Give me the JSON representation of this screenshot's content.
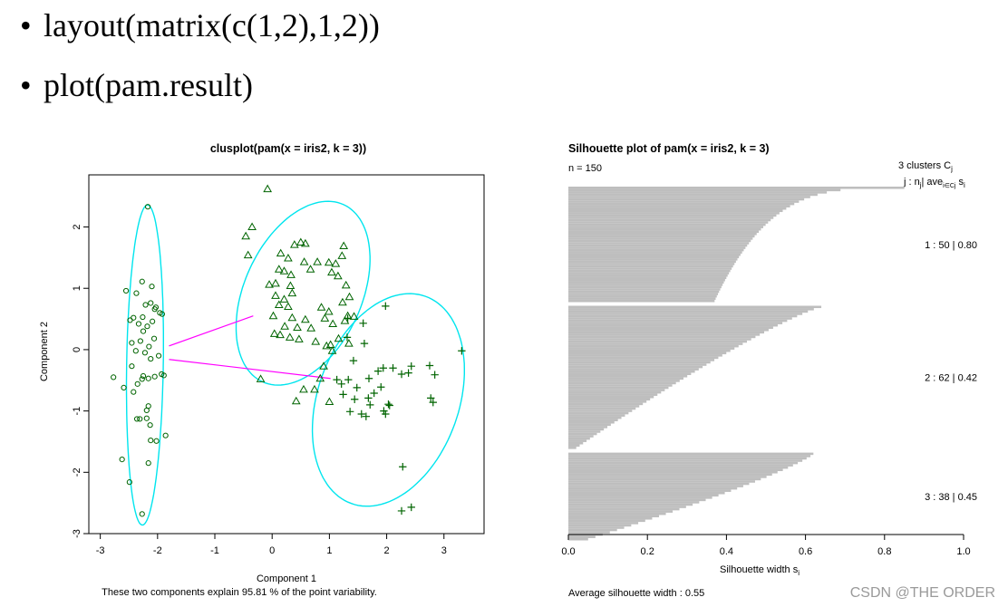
{
  "slide": {
    "bullets": [
      {
        "glyph": "•",
        "text": "layout(matrix(c(1,2),1,2))"
      },
      {
        "glyph": "•",
        "text": "plot(pam.result)"
      }
    ],
    "watermark": "CSDN @THE ORDER"
  },
  "chart_data": [
    {
      "type": "scatter",
      "title": "clusplot(pam(x = iris2, k = 3))",
      "xlabel": "Component 1",
      "ylabel": "Component 2",
      "subtitle": "These two components explain 95.81 % of the point variability.",
      "xlim": [
        -3.2,
        3.7
      ],
      "ylim": [
        -3.0,
        2.85
      ],
      "xticks": [
        -3,
        -2,
        -1,
        0,
        1,
        2,
        3
      ],
      "yticks": [
        -3,
        -2,
        -1,
        0,
        1,
        2
      ],
      "colors": {
        "points": "#006400",
        "ellipse": "#00e5ee",
        "lines": "#ff00ff"
      },
      "series": [
        {
          "marker": "circle",
          "points": [
            [
              -2.17,
              2.33
            ],
            [
              -2.55,
              0.96
            ],
            [
              -2.37,
              0.92
            ],
            [
              -2.1,
              1.03
            ],
            [
              -2.27,
              1.11
            ],
            [
              -2.12,
              0.76
            ],
            [
              -2.03,
              0.69
            ],
            [
              -2.05,
              0.66
            ],
            [
              -1.92,
              0.58
            ],
            [
              -2.42,
              0.52
            ],
            [
              -2.26,
              0.53
            ],
            [
              -2.09,
              0.46
            ],
            [
              -2.33,
              0.42
            ],
            [
              -2.48,
              0.48
            ],
            [
              -1.96,
              0.6
            ],
            [
              -2.21,
              0.73
            ],
            [
              -2.25,
              0.3
            ],
            [
              -2.18,
              0.38
            ],
            [
              -2.06,
              0.18
            ],
            [
              -2.3,
              0.14
            ],
            [
              -2.45,
              0.11
            ],
            [
              -2.15,
              0.05
            ],
            [
              -2.38,
              -0.02
            ],
            [
              -2.22,
              -0.05
            ],
            [
              -1.98,
              -0.1
            ],
            [
              -2.12,
              -0.15
            ],
            [
              -2.45,
              -0.27
            ],
            [
              -2.25,
              -0.43
            ],
            [
              -2.16,
              -0.47
            ],
            [
              -2.05,
              -0.44
            ],
            [
              -1.93,
              -0.4
            ],
            [
              -1.89,
              -0.42
            ],
            [
              -2.27,
              -0.48
            ],
            [
              -2.35,
              -0.56
            ],
            [
              -2.59,
              -0.62
            ],
            [
              -2.77,
              -0.45
            ],
            [
              -2.42,
              -0.69
            ],
            [
              -2.16,
              -0.92
            ],
            [
              -2.19,
              -0.99
            ],
            [
              -2.36,
              -1.13
            ],
            [
              -2.31,
              -1.13
            ],
            [
              -2.19,
              -1.12
            ],
            [
              -2.13,
              -1.23
            ],
            [
              -1.86,
              -1.4
            ],
            [
              -2.12,
              -1.48
            ],
            [
              -2.02,
              -1.49
            ],
            [
              -2.62,
              -1.79
            ],
            [
              -2.16,
              -1.85
            ],
            [
              -2.49,
              -2.16
            ],
            [
              -2.27,
              -2.68
            ]
          ]
        },
        {
          "marker": "triangle",
          "points": [
            [
              -0.08,
              2.62
            ],
            [
              -0.35,
              2.0
            ],
            [
              -0.46,
              1.85
            ],
            [
              -0.42,
              1.54
            ],
            [
              0.5,
              1.75
            ],
            [
              0.58,
              1.73
            ],
            [
              0.39,
              1.71
            ],
            [
              0.15,
              1.57
            ],
            [
              1.25,
              1.69
            ],
            [
              1.22,
              1.53
            ],
            [
              0.28,
              1.49
            ],
            [
              0.56,
              1.43
            ],
            [
              0.79,
              1.43
            ],
            [
              0.99,
              1.42
            ],
            [
              1.11,
              1.4
            ],
            [
              0.12,
              1.31
            ],
            [
              0.21,
              1.28
            ],
            [
              0.33,
              1.22
            ],
            [
              0.67,
              1.31
            ],
            [
              1.04,
              1.26
            ],
            [
              1.15,
              1.2
            ],
            [
              1.29,
              1.05
            ],
            [
              0.06,
              1.08
            ],
            [
              -0.05,
              1.06
            ],
            [
              0.32,
              1.04
            ],
            [
              0.35,
              0.92
            ],
            [
              0.06,
              0.88
            ],
            [
              0.21,
              0.82
            ],
            [
              1.35,
              0.86
            ],
            [
              1.23,
              0.77
            ],
            [
              0.12,
              0.73
            ],
            [
              0.28,
              0.7
            ],
            [
              0.86,
              0.69
            ],
            [
              0.99,
              0.62
            ],
            [
              1.32,
              0.55
            ],
            [
              0.02,
              0.55
            ],
            [
              0.35,
              0.52
            ],
            [
              0.58,
              0.49
            ],
            [
              0.92,
              0.51
            ],
            [
              1.27,
              0.47
            ],
            [
              1.43,
              0.54
            ],
            [
              0.22,
              0.38
            ],
            [
              0.44,
              0.36
            ],
            [
              0.68,
              0.35
            ],
            [
              0.04,
              0.26
            ],
            [
              0.14,
              0.24
            ],
            [
              0.31,
              0.2
            ],
            [
              0.47,
              0.17
            ],
            [
              0.76,
              0.13
            ],
            [
              1.02,
              0.08
            ],
            [
              1.16,
              0.18
            ],
            [
              1.34,
              0.1
            ],
            [
              0.95,
              0.06
            ],
            [
              1.05,
              -0.02
            ],
            [
              0.9,
              -0.27
            ],
            [
              0.84,
              -0.47
            ],
            [
              0.55,
              -0.65
            ],
            [
              0.74,
              -0.65
            ],
            [
              1.0,
              -0.85
            ],
            [
              0.42,
              -0.84
            ],
            [
              1.06,
              0.42
            ],
            [
              -0.2,
              -0.48
            ]
          ]
        },
        {
          "marker": "plus",
          "points": [
            [
              1.98,
              0.71
            ],
            [
              1.32,
              0.51
            ],
            [
              1.59,
              0.43
            ],
            [
              1.31,
              0.2
            ],
            [
              1.61,
              0.1
            ],
            [
              1.42,
              -0.18
            ],
            [
              1.33,
              -0.49
            ],
            [
              1.69,
              -0.47
            ],
            [
              1.94,
              -0.3
            ],
            [
              1.85,
              -0.35
            ],
            [
              1.9,
              -0.61
            ],
            [
              1.78,
              -0.71
            ],
            [
              1.71,
              -0.9
            ],
            [
              1.68,
              -0.79
            ],
            [
              1.44,
              -0.81
            ],
            [
              1.24,
              -0.73
            ],
            [
              1.21,
              -0.56
            ],
            [
              1.13,
              -0.49
            ],
            [
              1.36,
              -1.01
            ],
            [
              1.56,
              -1.05
            ],
            [
              1.64,
              -1.09
            ],
            [
              1.95,
              -1.0
            ],
            [
              1.98,
              -1.05
            ],
            [
              2.03,
              -0.89
            ],
            [
              2.05,
              -0.91
            ],
            [
              2.26,
              -0.4
            ],
            [
              2.38,
              -0.38
            ],
            [
              2.43,
              -0.27
            ],
            [
              2.75,
              -0.26
            ],
            [
              2.84,
              -0.41
            ],
            [
              2.77,
              -0.79
            ],
            [
              2.81,
              -0.86
            ],
            [
              2.28,
              -1.91
            ],
            [
              2.26,
              -2.63
            ],
            [
              2.43,
              -2.57
            ],
            [
              3.31,
              -0.02
            ],
            [
              2.11,
              -0.3
            ],
            [
              1.48,
              -0.62
            ]
          ]
        }
      ],
      "ellipses": [
        {
          "center": [
            -2.22,
            -0.25
          ],
          "semi_axes": [
            0.32,
            2.61
          ],
          "angle_deg": 1
        },
        {
          "center": [
            0.54,
            0.92
          ],
          "semi_axes": [
            1.01,
            1.61
          ],
          "angle_deg": 28
        },
        {
          "center": [
            2.03,
            -0.82
          ],
          "semi_axes": [
            1.22,
            1.81
          ],
          "angle_deg": 23
        }
      ],
      "segments": [
        [
          [
            -1.8,
            0.06
          ],
          [
            -0.33,
            0.55
          ]
        ],
        [
          [
            -1.8,
            -0.16
          ],
          [
            1.02,
            -0.47
          ]
        ]
      ]
    },
    {
      "type": "bar",
      "title": "Silhouette plot of pam(x = iris2, k = 3)",
      "n_label": "n = 150",
      "xlabel": "Silhouette width s",
      "xlabel_sub": "i",
      "xlim": [
        0,
        1
      ],
      "xticks": [
        "0.0",
        "0.2",
        "0.4",
        "0.6",
        "0.8",
        "1.0"
      ],
      "legend_header": "3  clusters  C",
      "legend_header_sub": "j",
      "legend_sub": "j :  n",
      "legend_sub_n": "j",
      "legend_sub_ave": "| ave",
      "legend_sub_ave_idx": "i∈Cj",
      "legend_sub_s": " s",
      "legend_sub_s_idx": "i",
      "footer": "Average silhouette width :  0.55",
      "bar_color": "#bebebe",
      "clusters": [
        {
          "label": "1 :   50  |  0.80",
          "n": 50,
          "max": 0.85,
          "min": 0.37,
          "curve": 0.28
        },
        {
          "label": "2 :   62  |  0.42",
          "n": 62,
          "max": 0.64,
          "min": 0.02,
          "curve": 0.85
        },
        {
          "label": "3 :   38  |  0.45",
          "n": 38,
          "max": 0.62,
          "min": 0.05,
          "curve": 1.2
        }
      ]
    }
  ]
}
